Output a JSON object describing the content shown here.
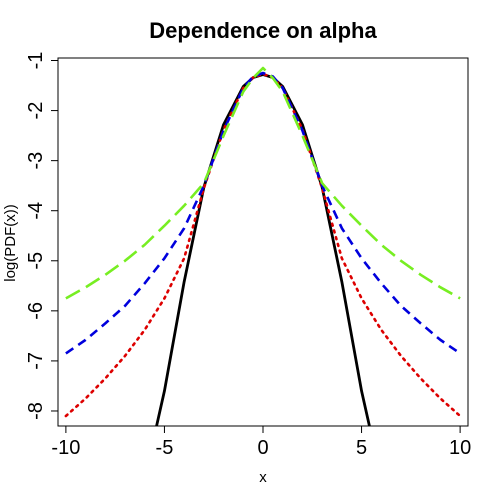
{
  "chart_data": {
    "type": "line",
    "title": "Dependence on alpha",
    "xlabel": "x",
    "ylabel": "log(PDF(x))",
    "xlim": [
      -10.4,
      10.4
    ],
    "ylim": [
      -8.3,
      -0.95
    ],
    "x_ticks": [
      -10,
      -5,
      0,
      5,
      10
    ],
    "x_tick_labels": [
      "-10",
      "-5",
      "0",
      "5",
      "10"
    ],
    "y_ticks": [
      -8,
      -7,
      -6,
      -5,
      -4,
      -3,
      -2,
      -1
    ],
    "y_tick_labels": [
      "-8",
      "-7",
      "-6",
      "-5",
      "-4",
      "-3",
      "-2",
      "-1"
    ],
    "grid": false,
    "legend": "none",
    "series": [
      {
        "color": "#000000",
        "style": "solid",
        "x": [
          -5.4,
          -5.0,
          -4.0,
          -3.0,
          -2.0,
          -1.0,
          -0.5,
          0.0,
          0.5,
          1.0,
          2.0,
          3.0,
          4.0,
          5.0,
          5.4
        ],
        "y": [
          -8.3,
          -7.6,
          -5.42,
          -3.53,
          -2.28,
          -1.52,
          -1.34,
          -1.28,
          -1.34,
          -1.52,
          -2.28,
          -3.53,
          -5.42,
          -7.6,
          -8.3
        ]
      },
      {
        "color": "#dd0000",
        "style": "dotted",
        "x": [
          -10,
          -9,
          -8,
          -7,
          -6,
          -5,
          -4,
          -3,
          -2,
          -1,
          -0.5,
          0,
          0.5,
          1,
          2,
          3,
          4,
          5,
          6,
          7,
          8,
          9,
          10
        ],
        "y": [
          -8.1,
          -7.75,
          -7.35,
          -6.9,
          -6.38,
          -5.75,
          -4.95,
          -3.55,
          -2.38,
          -1.55,
          -1.34,
          -1.27,
          -1.34,
          -1.55,
          -2.38,
          -3.55,
          -4.95,
          -5.75,
          -6.38,
          -6.9,
          -7.35,
          -7.75,
          -8.1
        ]
      },
      {
        "color": "#0000dd",
        "style": "dashed",
        "x": [
          -10,
          -9,
          -8,
          -7,
          -6,
          -5,
          -4,
          -3,
          -2,
          -1,
          -0.5,
          0,
          0.5,
          1,
          2,
          3,
          4,
          5,
          6,
          7,
          8,
          9,
          10
        ],
        "y": [
          -6.85,
          -6.58,
          -6.25,
          -5.9,
          -5.45,
          -4.95,
          -4.35,
          -3.5,
          -2.4,
          -1.55,
          -1.32,
          -1.25,
          -1.32,
          -1.55,
          -2.4,
          -3.5,
          -4.35,
          -4.95,
          -5.45,
          -5.9,
          -6.25,
          -6.58,
          -6.85
        ]
      },
      {
        "color": "#77ee22",
        "style": "longdash",
        "x": [
          -10,
          -9,
          -8,
          -7,
          -6,
          -5,
          -4,
          -3,
          -2,
          -1,
          -0.5,
          0,
          0.5,
          1,
          2,
          3,
          4,
          5,
          6,
          7,
          8,
          9,
          10
        ],
        "y": [
          -5.75,
          -5.53,
          -5.28,
          -5.0,
          -4.68,
          -4.3,
          -3.9,
          -3.45,
          -2.5,
          -1.62,
          -1.35,
          -1.15,
          -1.35,
          -1.62,
          -2.5,
          -3.45,
          -3.9,
          -4.3,
          -4.68,
          -5.0,
          -5.28,
          -5.53,
          -5.75
        ]
      }
    ]
  }
}
